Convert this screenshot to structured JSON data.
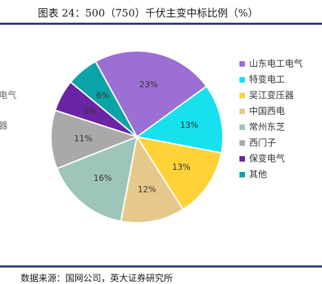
{
  "figure": {
    "title": "图表 24：500（750）千伏主变中标比例（%）",
    "source": "数据来源：国网公司，英大证券研究所",
    "ghost_left_text": [
      "电气",
      "器"
    ]
  },
  "chart_data": {
    "type": "pie",
    "title": "图表 24：500（750）千伏主变中标比例（%）",
    "unit": "%",
    "legend_position": "right",
    "slices": [
      {
        "label": "山东电工电气",
        "value": 23,
        "color": "#9b6fd3"
      },
      {
        "label": "特变电工",
        "value": 13,
        "color": "#17e0ef"
      },
      {
        "label": "吴江变压器",
        "value": 13,
        "color": "#ffd337"
      },
      {
        "label": "中国西电",
        "value": 12,
        "color": "#e6c98a"
      },
      {
        "label": "常州东芝",
        "value": 16,
        "color": "#9ec5b9"
      },
      {
        "label": "西门子",
        "value": 11,
        "color": "#aaa8a8"
      },
      {
        "label": "保变电气",
        "value": 6,
        "color": "#6a24a6"
      },
      {
        "label": "其他",
        "value": 6,
        "color": "#0aa3a8"
      }
    ]
  }
}
